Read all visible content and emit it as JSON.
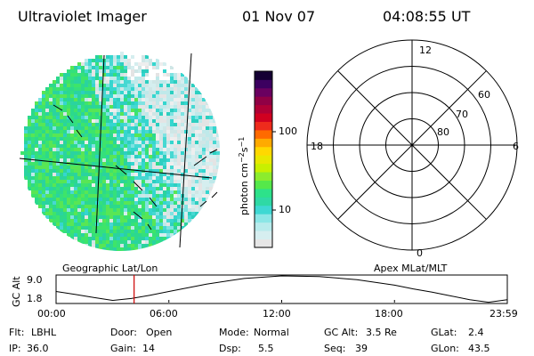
{
  "header": {
    "title": "Ultraviolet Imager",
    "date": "01 Nov 07",
    "time": "04:08:55 UT"
  },
  "colors": {
    "bg": "#ffffff",
    "ink": "#000000",
    "time_marker": "#cc0000"
  },
  "labels": {
    "geo": "Geographic Lat/Lon",
    "apex": "Apex MLat/MLT"
  },
  "colorbar": {
    "label_main": "photon cm",
    "label_exp1": "−2",
    "label_mid": "s",
    "label_exp2": "−1",
    "ticks": [
      "100",
      "10"
    ],
    "scale": "log",
    "colors": [
      "#e6e6e6",
      "#d6eef0",
      "#b8ebec",
      "#8be6e6",
      "#3ed8d3",
      "#2fd9a5",
      "#2de28a",
      "#55e84a",
      "#8cec2d",
      "#c8f000",
      "#e8e800",
      "#ffd800",
      "#ffaa00",
      "#ff6a00",
      "#ee2b1c",
      "#d10020",
      "#b00035",
      "#900045",
      "#6a0060",
      "#3c0060",
      "#140033"
    ]
  },
  "polar": {
    "mlt_labels": [
      "12",
      "18",
      "6",
      "0"
    ],
    "mlat_labels": [
      "60",
      "70",
      "80"
    ]
  },
  "altitude_panel": {
    "ylabel": "GC Alt",
    "yticks": [
      "9.0",
      "1.8"
    ],
    "xticks": [
      "00:00",
      "06:00",
      "12:00",
      "18:00",
      "23:59"
    ]
  },
  "chart_data": {
    "type": "line",
    "title": "",
    "xlabel": "",
    "ylabel": "GC Alt",
    "x_unit": "UT hours",
    "xlim": [
      0,
      24
    ],
    "ylim": [
      1.8,
      9.0
    ],
    "x": [
      0,
      1,
      2,
      3,
      4,
      5,
      6,
      8,
      10,
      12,
      14,
      16,
      18,
      19,
      20,
      21,
      22,
      23,
      24
    ],
    "series": [
      {
        "values": [
          4.8,
          4.0,
          3.2,
          2.4,
          2.9,
          3.8,
          4.8,
          6.8,
          8.3,
          9.0,
          8.8,
          8.0,
          6.5,
          5.5,
          4.6,
          3.6,
          2.6,
          1.9,
          2.6
        ]
      }
    ],
    "marker_ut": 4.15
  },
  "status": {
    "flt_label": "Flt:",
    "flt_value": "LBHL",
    "door_label": "Door:",
    "door_value": "Open",
    "mode_label": "Mode:",
    "mode_value": "Normal",
    "gcalt_label": "GC Alt:",
    "gcalt_value": "3.5 Re",
    "glat_label": "GLat:",
    "glat_value": "2.4",
    "ip_label": "IP:",
    "ip_value": "36.0",
    "gain_label": "Gain:",
    "gain_value": "14",
    "dsp_label": "Dsp:",
    "dsp_value": "5.5",
    "seq_label": "Seq:",
    "seq_value": "39",
    "glon_label": "GLon:",
    "glon_value": "43.5"
  }
}
